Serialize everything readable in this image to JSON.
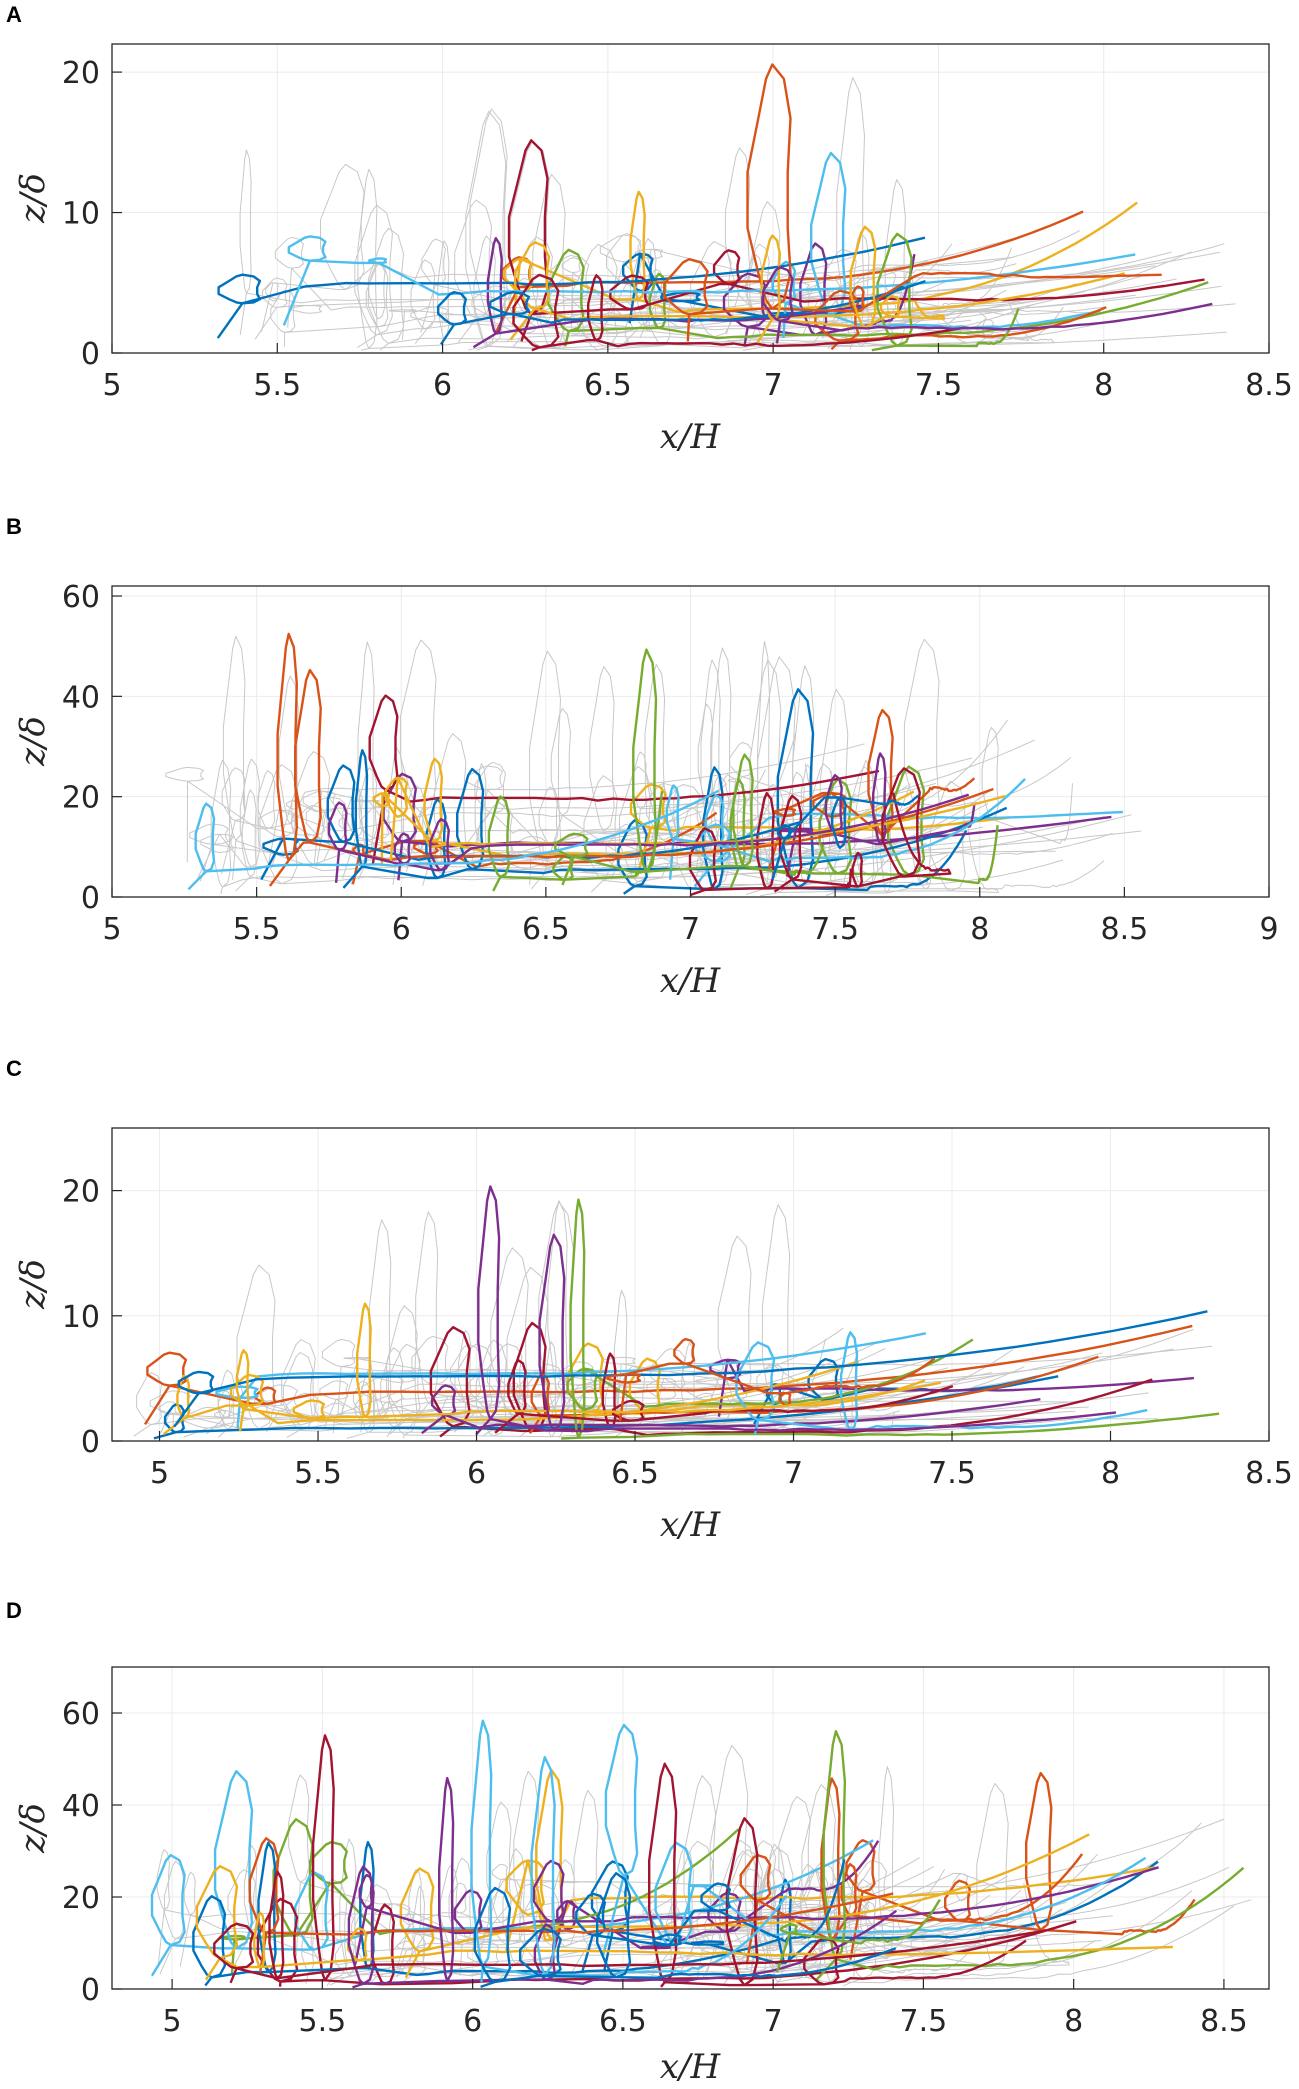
{
  "colors": {
    "series": [
      "#0072BD",
      "#D95319",
      "#EDB120",
      "#7E2F8E",
      "#77AC30",
      "#4DBEEE",
      "#A2142F"
    ],
    "background_traj": "#c8c8c8",
    "grid": "#ebebeb",
    "axis": "#262626"
  },
  "chart_data": [
    {
      "type": "line",
      "panel": "A",
      "description": "particle trajectories",
      "xlabel": "x/H",
      "ylabel": "z/δ",
      "xlim": [
        5,
        8.5
      ],
      "ylim": [
        0,
        22
      ],
      "xticks": [
        5,
        5.5,
        6,
        6.5,
        7,
        7.5,
        8,
        8.5
      ],
      "xtick_labels": [
        "5",
        "5.5",
        "6",
        "6.5",
        "7",
        "7.5",
        "8",
        "8.5"
      ],
      "yticks": [
        0,
        10,
        20
      ],
      "ytick_labels": [
        "0",
        "10",
        "20"
      ],
      "grid": true,
      "traj_x_start_range": [
        5.25,
        7.3
      ],
      "traj_x_end_range": [
        7.2,
        8.4
      ],
      "traj_typical_height": 6,
      "traj_peak_height": 22,
      "n_colored": 18,
      "n_gray": 34,
      "seed": 11
    },
    {
      "type": "line",
      "panel": "B",
      "description": "particle trajectories",
      "xlabel": "x/H",
      "ylabel": "z/δ",
      "xlim": [
        5,
        9
      ],
      "ylim": [
        0,
        62
      ],
      "xticks": [
        5,
        5.5,
        6,
        6.5,
        7,
        7.5,
        8,
        8.5,
        9
      ],
      "xtick_labels": [
        "5",
        "5.5",
        "6",
        "6.5",
        "7",
        "7.5",
        "8",
        "8.5",
        "9"
      ],
      "yticks": [
        0,
        20,
        40,
        60
      ],
      "ytick_labels": [
        "0",
        "20",
        "40",
        "60"
      ],
      "grid": true,
      "traj_x_start_range": [
        5.25,
        7.6
      ],
      "traj_x_end_range": [
        6.9,
        8.7
      ],
      "traj_typical_height": 20,
      "traj_peak_height": 57,
      "n_colored": 22,
      "n_gray": 40,
      "seed": 23
    },
    {
      "type": "line",
      "panel": "C",
      "description": "particle trajectories",
      "xlabel": "x/H",
      "ylabel": "z/δ",
      "xlim": [
        4.85,
        8.5
      ],
      "ylim": [
        0,
        25
      ],
      "xticks": [
        5,
        5.5,
        6,
        6.5,
        7,
        7.5,
        8,
        8.5
      ],
      "xtick_labels": [
        "5",
        "5.5",
        "6",
        "6.5",
        "7",
        "7.5",
        "8",
        "8.5"
      ],
      "yticks": [
        0,
        10,
        20
      ],
      "ytick_labels": [
        "0",
        "10",
        "20"
      ],
      "grid": true,
      "traj_x_start_range": [
        4.9,
        6.9
      ],
      "traj_x_end_range": [
        7.0,
        8.4
      ],
      "traj_typical_height": 6,
      "traj_peak_height": 22,
      "n_colored": 18,
      "n_gray": 34,
      "seed": 37
    },
    {
      "type": "line",
      "panel": "D",
      "description": "particle trajectories",
      "xlabel": "x/H",
      "ylabel": "z/δ",
      "xlim": [
        4.8,
        8.65
      ],
      "ylim": [
        0,
        70
      ],
      "xticks": [
        5,
        5.5,
        6,
        6.5,
        7,
        7.5,
        8,
        8.5
      ],
      "xtick_labels": [
        "5",
        "5.5",
        "6",
        "6.5",
        "7",
        "7.5",
        "8",
        "8.5"
      ],
      "yticks": [
        0,
        20,
        40,
        60
      ],
      "ytick_labels": [
        "0",
        "20",
        "40",
        "60"
      ],
      "grid": true,
      "traj_x_start_range": [
        4.9,
        7.3
      ],
      "traj_x_end_range": [
        6.6,
        8.6
      ],
      "traj_typical_height": 22,
      "traj_peak_height": 62,
      "n_colored": 22,
      "n_gray": 40,
      "seed": 53
    }
  ]
}
